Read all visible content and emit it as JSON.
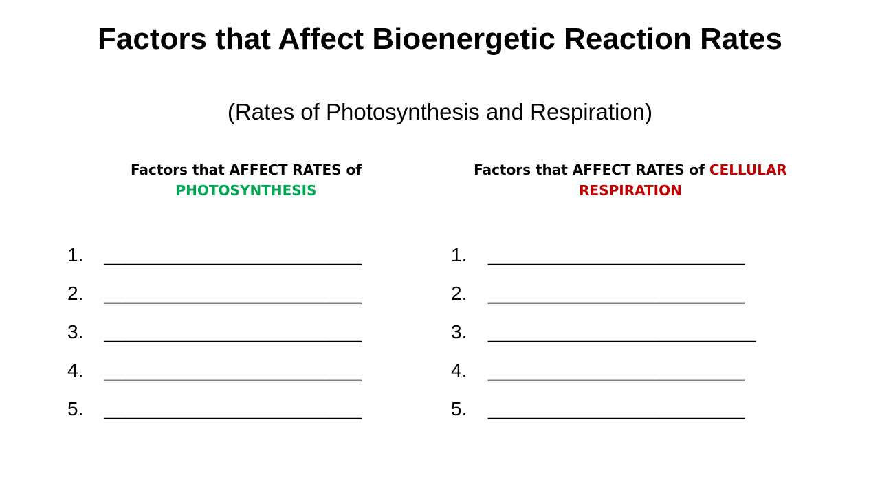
{
  "slide": {
    "title": "Factors that Affect Bioenergetic Reaction Rates",
    "subtitle": "(Rates of Photosynthesis and Respiration)",
    "columns": [
      {
        "heading_prefix": "Factors that AFFECT RATES of ",
        "heading_highlight": "PHOTOSYNTHESIS",
        "highlight_color": "#00a651",
        "items": [
          {
            "num": "1.",
            "blank": "________________________"
          },
          {
            "num": "2.",
            "blank": "________________________"
          },
          {
            "num": "3.",
            "blank": "________________________"
          },
          {
            "num": "4.",
            "blank": "________________________"
          },
          {
            "num": "5.",
            "blank": "________________________"
          }
        ]
      },
      {
        "heading_prefix": "Factors that AFFECT RATES of ",
        "heading_highlight": "CELLULAR RESPIRATION",
        "highlight_color": "#c00000",
        "items": [
          {
            "num": "1.",
            "blank": "________________________"
          },
          {
            "num": "2.",
            "blank": "________________________"
          },
          {
            "num": "3.",
            "blank": "_________________________"
          },
          {
            "num": "4.",
            "blank": "________________________"
          },
          {
            "num": "5.",
            "blank": "________________________"
          }
        ]
      }
    ]
  }
}
